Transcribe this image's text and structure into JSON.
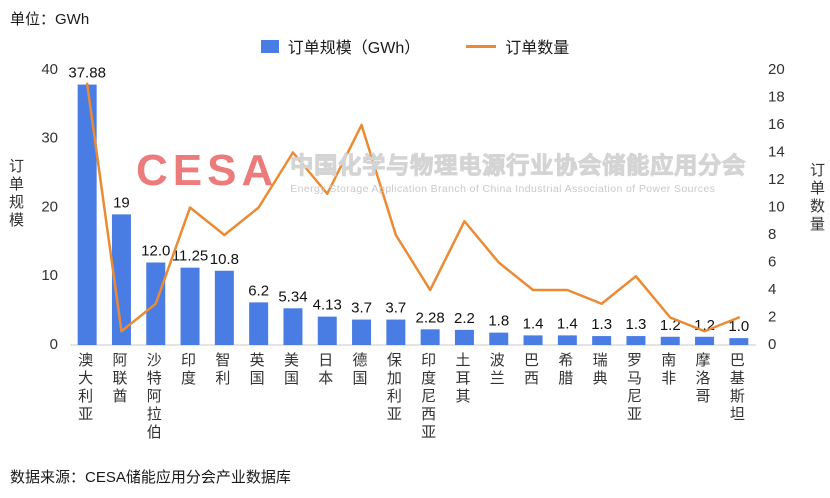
{
  "unit_label": "单位：GWh",
  "legend": {
    "bar_label": "订单规模（GWh）",
    "line_label": "订单数量"
  },
  "left_axis_title": "订单规模",
  "right_axis_title": "订单数量",
  "watermark": {
    "logo": "CESA",
    "title": "中国化学与物理电源行业协会储能应用分会",
    "subtitle": "Energy Storage Application Branch of China Industrial Association of Power Sources"
  },
  "footer": "数据来源：CESA储能应用分会产业数据库",
  "colors": {
    "bar": "#4A7DE4",
    "line": "#EC8A33",
    "logo_red": "#EA6D6E"
  },
  "chart_data": {
    "type": "bar",
    "subtype": "bar+line combo",
    "categories": [
      "澳大利亚",
      "阿联酋",
      "沙特阿拉伯",
      "印度",
      "智利",
      "英国",
      "美国",
      "日本",
      "德国",
      "保加利亚",
      "印度尼西亚",
      "土耳其",
      "波兰",
      "巴西",
      "希腊",
      "瑞典",
      "罗马尼亚",
      "南非",
      "摩洛哥",
      "巴基斯坦"
    ],
    "series": [
      {
        "name": "订单规模（GWh）",
        "type": "bar",
        "axis": "left",
        "values": [
          37.88,
          19,
          12.0,
          11.25,
          10.8,
          6.2,
          5.34,
          4.13,
          3.7,
          3.7,
          2.28,
          2.2,
          1.8,
          1.4,
          1.4,
          1.3,
          1.3,
          1.2,
          1.2,
          1.0
        ],
        "labels": [
          "37.88",
          "19",
          "12.0",
          "11.25",
          "10.8",
          "6.2",
          "5.34",
          "4.13",
          "3.7",
          "3.7",
          "2.28",
          "2.2",
          "1.8",
          "1.4",
          "1.4",
          "1.3",
          "1.3",
          "1.2",
          "1.2",
          "1.0"
        ]
      },
      {
        "name": "订单数量",
        "type": "line",
        "axis": "right",
        "values": [
          19,
          1,
          3,
          10,
          8,
          10,
          14,
          11,
          16,
          8,
          4,
          9,
          6,
          4,
          4,
          3,
          5,
          2,
          1,
          2
        ]
      }
    ],
    "left_axis": {
      "label": "订单规模",
      "min": 0,
      "max": 40,
      "ticks": [
        0,
        10,
        20,
        30,
        40
      ]
    },
    "right_axis": {
      "label": "订单数量",
      "min": 0,
      "max": 20,
      "ticks": [
        0,
        2,
        4,
        6,
        8,
        10,
        12,
        14,
        16,
        18,
        20
      ]
    },
    "grid": false,
    "legend_position": "top",
    "title": "",
    "xlabel": "",
    "ylabel": "订单规模 / 订单数量"
  }
}
